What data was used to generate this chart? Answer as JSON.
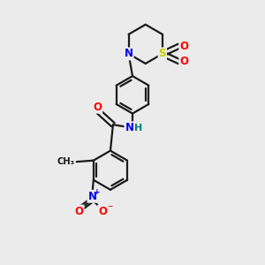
{
  "bg_color": "#ebebeb",
  "bond_color": "#1a1a1a",
  "atom_colors": {
    "N": "#0000ee",
    "O": "#ff0000",
    "S": "#cccc00",
    "C": "#1a1a1a",
    "H": "#008080"
  },
  "figsize": [
    3.0,
    3.0
  ],
  "dpi": 100,
  "lw": 1.6,
  "fontsize": 8.5
}
